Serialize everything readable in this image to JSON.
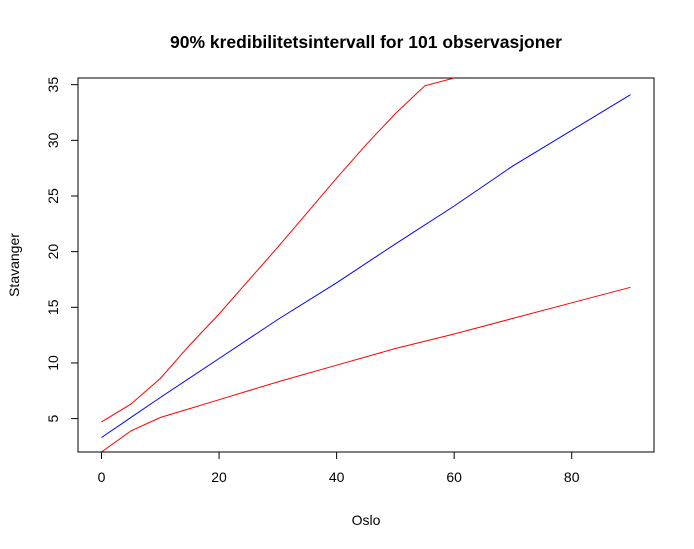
{
  "chart_data": {
    "type": "line",
    "title": "90% kredibilitetsintervall for 101 observasjoner",
    "xlabel": "Oslo",
    "ylabel": "Stavanger",
    "xlim": [
      -4,
      94
    ],
    "ylim": [
      2,
      35.6
    ],
    "xticks": [
      0,
      20,
      40,
      60,
      80
    ],
    "yticks": [
      5,
      10,
      15,
      20,
      25,
      30,
      35
    ],
    "grid": false,
    "series": [
      {
        "color": "#ff0000",
        "x": [
          0,
          5,
          10,
          15,
          20,
          25,
          30,
          35,
          40,
          45,
          50,
          55,
          60
        ],
        "y": [
          4.7,
          6.3,
          8.6,
          11.6,
          14.4,
          17.4,
          20.4,
          23.5,
          26.6,
          29.6,
          32.4,
          34.9,
          35.6
        ]
      },
      {
        "color": "#0000ff",
        "x": [
          0,
          10,
          20,
          30,
          40,
          50,
          60,
          70,
          80,
          90
        ],
        "y": [
          3.3,
          6.9,
          10.4,
          13.9,
          17.2,
          20.7,
          24.1,
          27.7,
          30.9,
          34.1
        ]
      },
      {
        "color": "#ff0000",
        "x": [
          0,
          5,
          10,
          15,
          20,
          30,
          40,
          50,
          60,
          70,
          80,
          90
        ],
        "y": [
          2.0,
          3.9,
          5.1,
          5.9,
          6.7,
          8.3,
          9.8,
          11.3,
          12.6,
          14.0,
          15.4,
          16.8
        ]
      }
    ]
  }
}
